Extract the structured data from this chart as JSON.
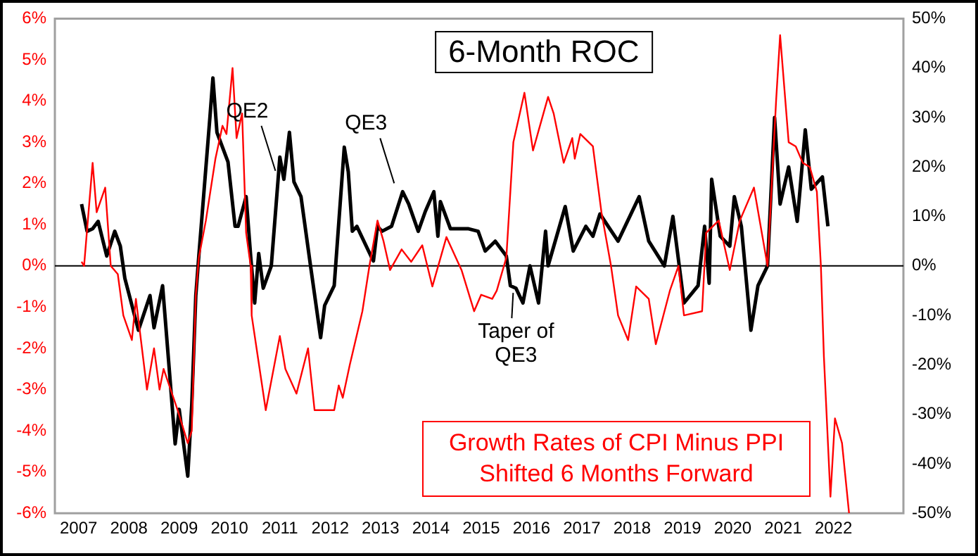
{
  "chart_data": {
    "type": "line",
    "title": "6-Month ROC",
    "xlim": [
      2006.53,
      2023.39
    ],
    "xticks": [
      2007,
      2008,
      2009,
      2010,
      2011,
      2012,
      2013,
      2014,
      2015,
      2016,
      2017,
      2018,
      2019,
      2020,
      2021,
      2022
    ],
    "ylim": [
      -6,
      6
    ],
    "yticks": [
      {
        "value": -6,
        "label": "-6%"
      },
      {
        "value": -5,
        "label": "-5%"
      },
      {
        "value": -4,
        "label": "-4%"
      },
      {
        "value": -3,
        "label": "-3%"
      },
      {
        "value": -2,
        "label": "-2%"
      },
      {
        "value": -1,
        "label": "-1%"
      },
      {
        "value": 0,
        "label": "0%"
      },
      {
        "value": 1,
        "label": "1%"
      },
      {
        "value": 2,
        "label": "2%"
      },
      {
        "value": 3,
        "label": "3%"
      },
      {
        "value": 4,
        "label": "4%"
      },
      {
        "value": 5,
        "label": "5%"
      },
      {
        "value": 6,
        "label": "6%"
      }
    ],
    "y2lim": [
      -50,
      50
    ],
    "y2ticks": [
      {
        "value": -50,
        "label": "-50%"
      },
      {
        "value": -40,
        "label": "-40%"
      },
      {
        "value": -30,
        "label": "-30%"
      },
      {
        "value": -20,
        "label": "-20%"
      },
      {
        "value": -10,
        "label": "-10%"
      },
      {
        "value": 0,
        "label": "0%"
      },
      {
        "value": 10,
        "label": "10%"
      },
      {
        "value": 20,
        "label": "20%"
      },
      {
        "value": 30,
        "label": "30%"
      },
      {
        "value": 40,
        "label": "40%"
      },
      {
        "value": 50,
        "label": "50%"
      }
    ],
    "grid": false,
    "legend": "bottom right",
    "marker": "none",
    "line_style": "solid",
    "ref_lines": [
      {
        "axis": "y",
        "value": 0,
        "color": "#000000"
      }
    ],
    "annotations": [
      {
        "text": "QE2",
        "x": 2011.08,
        "y": 2.1
      },
      {
        "text": "QE3",
        "x": 2013.44,
        "y": 1.8
      },
      {
        "text": "Taper of\nQE3",
        "x": 2015.58,
        "y": -0.45
      }
    ],
    "series": [
      {
        "name": "Growth Rates of CPI Minus PPI Shifted 6 Months Forward",
        "color": "#ff0000",
        "axis": "y",
        "x": [
          2007.06,
          2007.11,
          2007.28,
          2007.36,
          2007.53,
          2007.64,
          2007.78,
          2007.89,
          2008.06,
          2008.14,
          2008.36,
          2008.5,
          2008.61,
          2008.69,
          2008.97,
          2009.17,
          2009.25,
          2009.33,
          2009.39,
          2009.53,
          2009.72,
          2009.86,
          2009.94,
          2010.06,
          2010.14,
          2010.25,
          2010.33,
          2010.42,
          2010.44,
          2010.72,
          2011.0,
          2011.11,
          2011.33,
          2011.56,
          2011.69,
          2011.83,
          2012.08,
          2012.17,
          2012.25,
          2012.39,
          2012.64,
          2012.78,
          2012.94,
          2013.06,
          2013.19,
          2013.42,
          2013.61,
          2013.83,
          2014.03,
          2014.31,
          2014.61,
          2014.86,
          2015.0,
          2015.22,
          2015.31,
          2015.5,
          2015.64,
          2015.86,
          2016.03,
          2016.33,
          2016.44,
          2016.64,
          2016.81,
          2016.86,
          2016.97,
          2017.22,
          2017.39,
          2017.58,
          2017.72,
          2017.92,
          2018.08,
          2018.33,
          2018.47,
          2018.75,
          2018.92,
          2019.03,
          2019.39,
          2019.47,
          2019.72,
          2019.94,
          2020.14,
          2020.42,
          2020.69,
          2020.86,
          2020.94,
          2021.11,
          2021.25,
          2021.39,
          2021.53,
          2021.67,
          2021.75,
          2021.81,
          2021.94,
          2022.03,
          2022.17,
          2022.31
        ],
        "values": [
          0.1,
          0,
          2.5,
          1.3,
          1.9,
          0,
          -0.2,
          -1.2,
          -1.8,
          -0.8,
          -3.0,
          -2.0,
          -3.0,
          -2.5,
          -3.5,
          -4.3,
          -4.0,
          -0.7,
          0.2,
          1.1,
          2.6,
          3.4,
          3.2,
          4.8,
          3.1,
          3.7,
          0.8,
          0,
          -1.2,
          -3.5,
          -1.7,
          -2.5,
          -3.1,
          -2.0,
          -3.5,
          -3.5,
          -3.5,
          -2.9,
          -3.2,
          -2.4,
          -1.1,
          0,
          1.1,
          0.6,
          -0.1,
          0.4,
          0.1,
          0.5,
          -0.5,
          0.7,
          -0.1,
          -1.1,
          -0.7,
          -0.8,
          -0.6,
          0.2,
          3.0,
          4.2,
          2.8,
          4.1,
          3.7,
          2.5,
          3.1,
          2.6,
          3.2,
          2.9,
          1.3,
          0,
          -1.2,
          -1.8,
          -0.5,
          -0.8,
          -1.9,
          -0.6,
          0,
          -1.2,
          -1.1,
          0.8,
          1.1,
          -0.1,
          1.1,
          1.9,
          0,
          4.0,
          5.6,
          3.0,
          2.9,
          2.5,
          2.4,
          1.8,
          0,
          -2.2,
          -5.6,
          -3.7,
          -4.3,
          -6.0
        ]
      },
      {
        "color": "#000000",
        "axis": "y2",
        "x": [
          2007.06,
          2007.17,
          2007.28,
          2007.39,
          2007.56,
          2007.72,
          2007.83,
          2007.92,
          2008.19,
          2008.42,
          2008.5,
          2008.67,
          2008.78,
          2008.92,
          2009.0,
          2009.17,
          2009.25,
          2009.33,
          2009.39,
          2009.61,
          2009.67,
          2009.75,
          2009.97,
          2010.11,
          2010.17,
          2010.33,
          2010.42,
          2010.5,
          2010.58,
          2010.67,
          2010.83,
          2011.0,
          2011.08,
          2011.19,
          2011.28,
          2011.42,
          2011.61,
          2011.81,
          2011.89,
          2012.08,
          2012.28,
          2012.36,
          2012.44,
          2012.53,
          2012.81,
          2012.86,
          2012.94,
          2013.03,
          2013.22,
          2013.44,
          2013.56,
          2013.75,
          2013.89,
          2014.06,
          2014.14,
          2014.19,
          2014.39,
          2014.75,
          2014.94,
          2015.08,
          2015.28,
          2015.5,
          2015.58,
          2015.69,
          2015.83,
          2015.97,
          2016.14,
          2016.28,
          2016.33,
          2016.67,
          2016.83,
          2017.08,
          2017.22,
          2017.36,
          2017.72,
          2018.14,
          2018.33,
          2018.64,
          2018.81,
          2019.03,
          2019.31,
          2019.44,
          2019.53,
          2019.58,
          2019.75,
          2019.94,
          2020.03,
          2020.17,
          2020.36,
          2020.5,
          2020.69,
          2020.83,
          2020.94,
          2021.11,
          2021.28,
          2021.44,
          2021.56,
          2021.78,
          2021.89
        ],
        "values": [
          12.5,
          7,
          7.5,
          9,
          2,
          7,
          4,
          -2.5,
          -13,
          -6,
          -12.5,
          -4,
          -18,
          -36,
          -29,
          -42.5,
          -28,
          -6,
          2,
          30,
          38,
          27,
          21,
          8,
          8,
          14,
          2,
          -7.5,
          2.5,
          -4.5,
          0,
          22,
          17.5,
          27,
          17,
          14,
          0,
          -14.5,
          -8,
          -4,
          24,
          19,
          7,
          8,
          2,
          1,
          8,
          7,
          8,
          15,
          12.5,
          7,
          11,
          15,
          6,
          13,
          7.5,
          7.5,
          7,
          3,
          5,
          2,
          -4,
          -4.5,
          -7.5,
          0,
          -7.5,
          7,
          0,
          12,
          3,
          8,
          6,
          10.5,
          5,
          14,
          5,
          0,
          10,
          -7.5,
          -4,
          8,
          -3.5,
          17.5,
          6,
          4,
          14,
          8,
          -13,
          -4,
          0,
          30,
          12.5,
          20,
          9,
          27.5,
          15.5,
          18,
          8
        ]
      }
    ]
  }
}
